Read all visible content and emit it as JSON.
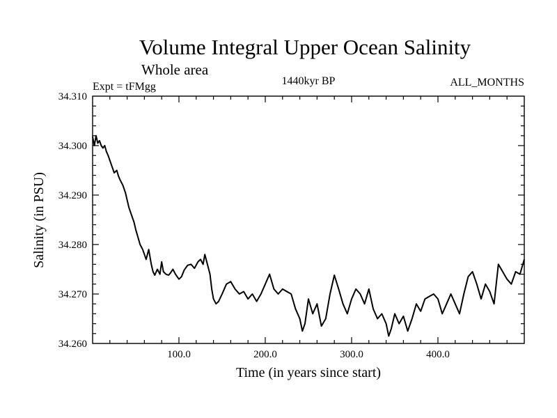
{
  "chart_data": {
    "type": "line",
    "title": "Volume Integral Upper Ocean Salinity",
    "subtitle": "Whole area",
    "experiment_label": "Expt = tFMgg",
    "period_label": "1440kyr BP",
    "months_label": "ALL_MONTHS",
    "xlabel": "Time (in years since start)",
    "ylabel": "Salinity (in PSU)",
    "xlim": [
      0,
      500
    ],
    "ylim": [
      34.26,
      34.31
    ],
    "xticks": [
      100,
      200,
      300,
      400
    ],
    "xtick_labels": [
      "100.0",
      "200.0",
      "300.0",
      "400.0"
    ],
    "yticks": [
      34.26,
      34.27,
      34.28,
      34.29,
      34.3,
      34.31
    ],
    "ytick_labels": [
      "34.260",
      "34.270",
      "34.280",
      "34.290",
      "34.300",
      "34.310"
    ],
    "grid": false,
    "line_color": "#000000",
    "series": [
      {
        "name": "salinity",
        "x": [
          0,
          2,
          4,
          6,
          8,
          10,
          12,
          14,
          16,
          18,
          20,
          22,
          25,
          28,
          30,
          32,
          35,
          38,
          40,
          42,
          45,
          48,
          50,
          52,
          55,
          58,
          60,
          62,
          65,
          68,
          70,
          72,
          75,
          78,
          80,
          82,
          85,
          88,
          90,
          93,
          96,
          100,
          103,
          106,
          110,
          114,
          118,
          122,
          125,
          128,
          130,
          133,
          136,
          138,
          140,
          143,
          146,
          150,
          155,
          160,
          165,
          170,
          175,
          180,
          185,
          190,
          195,
          200,
          205,
          210,
          215,
          220,
          225,
          230,
          235,
          240,
          243,
          246,
          250,
          255,
          260,
          265,
          270,
          275,
          280,
          285,
          290,
          295,
          300,
          305,
          310,
          315,
          320,
          325,
          330,
          335,
          340,
          343,
          346,
          350,
          355,
          360,
          365,
          370,
          375,
          380,
          385,
          390,
          395,
          400,
          405,
          410,
          415,
          420,
          425,
          430,
          435,
          440,
          445,
          450,
          455,
          460,
          465,
          470,
          475,
          480,
          485,
          490,
          495,
          500
        ],
        "y": [
          34.3018,
          34.3,
          34.302,
          34.3005,
          34.301,
          34.3,
          34.2995,
          34.3,
          34.2988,
          34.298,
          34.297,
          34.296,
          34.2945,
          34.295,
          34.2938,
          34.293,
          34.292,
          34.2905,
          34.289,
          34.2875,
          34.286,
          34.2845,
          34.283,
          34.2818,
          34.28,
          34.279,
          34.278,
          34.277,
          34.279,
          34.276,
          34.2745,
          34.2738,
          34.275,
          34.274,
          34.2765,
          34.2745,
          34.274,
          34.2738,
          34.2742,
          34.275,
          34.274,
          34.273,
          34.2735,
          34.2748,
          34.2758,
          34.276,
          34.2752,
          34.2765,
          34.277,
          34.276,
          34.278,
          34.276,
          34.274,
          34.271,
          34.269,
          34.268,
          34.2685,
          34.27,
          34.272,
          34.2725,
          34.271,
          34.27,
          34.2705,
          34.269,
          34.27,
          34.2685,
          34.27,
          34.272,
          34.274,
          34.271,
          34.27,
          34.271,
          34.2705,
          34.27,
          34.267,
          34.265,
          34.2625,
          34.264,
          34.269,
          34.266,
          34.268,
          34.2635,
          34.265,
          34.27,
          34.2738,
          34.271,
          34.268,
          34.266,
          34.269,
          34.271,
          34.27,
          34.268,
          34.271,
          34.267,
          34.265,
          34.266,
          34.264,
          34.2615,
          34.263,
          34.266,
          34.264,
          34.2655,
          34.2625,
          34.265,
          34.268,
          34.2665,
          34.269,
          34.2695,
          34.27,
          34.269,
          34.266,
          34.268,
          34.27,
          34.268,
          34.266,
          34.27,
          34.2735,
          34.2745,
          34.272,
          34.269,
          34.272,
          34.2705,
          34.268,
          34.276,
          34.2745,
          34.273,
          34.272,
          34.2745,
          34.274,
          34.277
        ]
      }
    ]
  }
}
